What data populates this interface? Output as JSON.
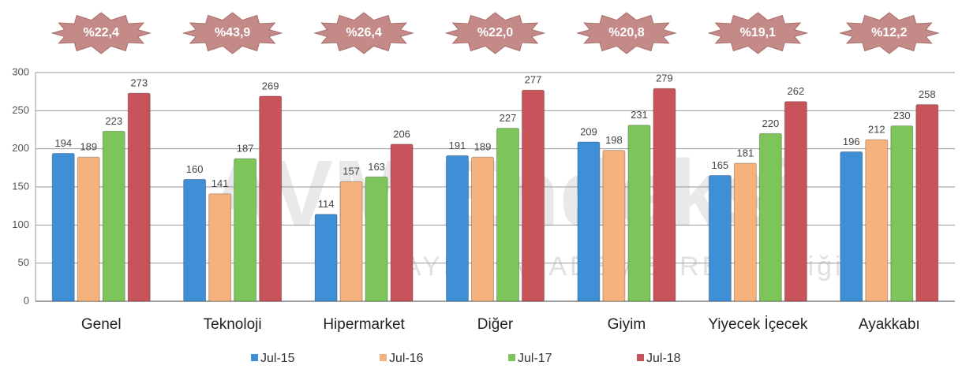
{
  "chart_data": {
    "type": "bar",
    "categories": [
      "Genel",
      "Teknoloji",
      "Hipermarket",
      "Diğer",
      "Giyim",
      "Yiyecek İçecek",
      "Ayakkabı"
    ],
    "series": [
      {
        "name": "Jul-15",
        "color": "#3f8fd6",
        "values": [
          194,
          160,
          114,
          191,
          209,
          165,
          196
        ]
      },
      {
        "name": "Jul-16",
        "color": "#f6b27c",
        "values": [
          189,
          141,
          157,
          189,
          198,
          181,
          212
        ]
      },
      {
        "name": "Jul-17",
        "color": "#7dc45a",
        "values": [
          223,
          187,
          163,
          227,
          231,
          220,
          230
        ]
      },
      {
        "name": "Jul-18",
        "color": "#c8535a",
        "values": [
          273,
          269,
          206,
          277,
          279,
          262,
          258
        ]
      }
    ],
    "change_labels": [
      "%22,4",
      "%43,9",
      "%26,4",
      "%22,0",
      "%20,8",
      "%19,1",
      "%12,2"
    ],
    "watermark": {
      "title": "AVM Endeksi",
      "subtitle": "AYD & AKADEMETRE işbirliği ile"
    },
    "ylim": [
      0,
      300
    ],
    "yticks": [
      0,
      50,
      100,
      150,
      200,
      250,
      300
    ],
    "grid": true
  }
}
